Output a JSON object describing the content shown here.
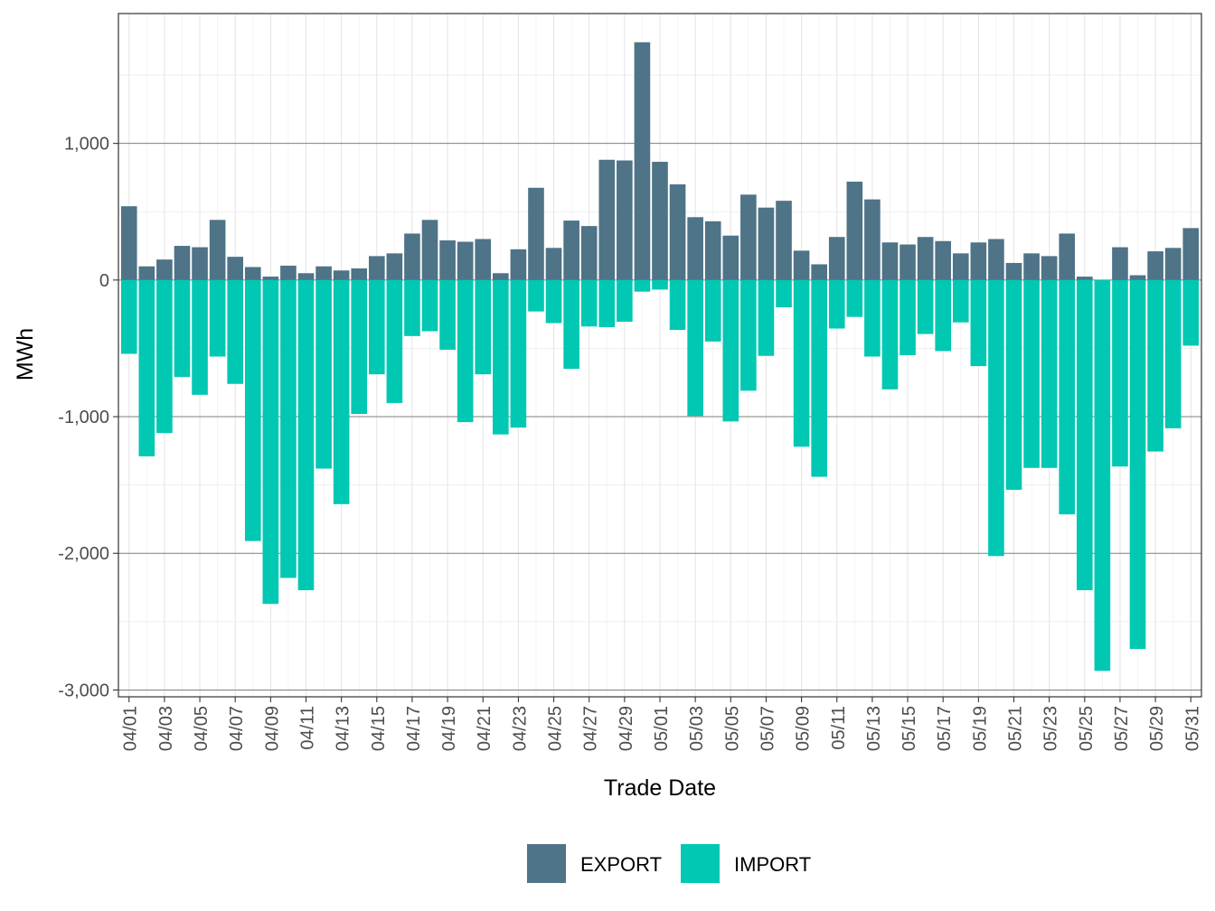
{
  "chart_data": {
    "type": "bar",
    "stacking": "diverging",
    "xlabel": "Trade Date",
    "ylabel": "MWh",
    "ylim": [
      -3050,
      1950
    ],
    "yticks": [
      -3000,
      -2000,
      -1000,
      0,
      1000
    ],
    "ytick_labels": [
      "-3,000",
      "-2,000",
      "-1,000",
      "0",
      "1,000"
    ],
    "grid": true,
    "legend_position": "bottom",
    "categories": [
      "04/01",
      "04/02",
      "04/03",
      "04/04",
      "04/05",
      "04/06",
      "04/07",
      "04/08",
      "04/09",
      "04/10",
      "04/11",
      "04/12",
      "04/13",
      "04/14",
      "04/15",
      "04/16",
      "04/17",
      "04/18",
      "04/19",
      "04/20",
      "04/21",
      "04/22",
      "04/23",
      "04/24",
      "04/25",
      "04/26",
      "04/27",
      "04/28",
      "04/29",
      "04/30",
      "05/01",
      "05/02",
      "05/03",
      "05/04",
      "05/05",
      "05/06",
      "05/07",
      "05/08",
      "05/09",
      "05/10",
      "05/11",
      "05/12",
      "05/13",
      "05/14",
      "05/15",
      "05/16",
      "05/17",
      "05/18",
      "05/19",
      "05/20",
      "05/21",
      "05/22",
      "05/23",
      "05/24",
      "05/25",
      "05/26",
      "05/27",
      "05/28",
      "05/29",
      "05/30",
      "05/31"
    ],
    "xtick_labels": [
      "04/01",
      "04/03",
      "04/05",
      "04/07",
      "04/09",
      "04/11",
      "04/13",
      "04/15",
      "04/17",
      "04/19",
      "04/21",
      "04/23",
      "04/25",
      "04/27",
      "04/29",
      "05/01",
      "05/03",
      "05/05",
      "05/07",
      "05/09",
      "05/11",
      "05/13",
      "05/15",
      "05/17",
      "05/19",
      "05/21",
      "05/23",
      "05/25",
      "05/27",
      "05/29",
      "05/31"
    ],
    "series": [
      {
        "name": "EXPORT",
        "color": "#4f7387",
        "values": [
          540,
          100,
          150,
          250,
          240,
          440,
          170,
          95,
          25,
          105,
          50,
          100,
          70,
          85,
          175,
          195,
          340,
          440,
          290,
          280,
          300,
          50,
          225,
          675,
          235,
          435,
          395,
          880,
          875,
          1740,
          865,
          700,
          460,
          430,
          325,
          625,
          530,
          580,
          215,
          115,
          315,
          720,
          590,
          275,
          260,
          315,
          285,
          195,
          275,
          300,
          125,
          195,
          175,
          340,
          25,
          0,
          240,
          35,
          210,
          235,
          380
        ]
      },
      {
        "name": "IMPORT",
        "color": "#00c8b2",
        "values": [
          -540,
          -1290,
          -1120,
          -710,
          -840,
          -560,
          -760,
          -1910,
          -2370,
          -2180,
          -2270,
          -1380,
          -1640,
          -980,
          -690,
          -900,
          -410,
          -375,
          -510,
          -1040,
          -690,
          -1130,
          -1080,
          -230,
          -315,
          -650,
          -340,
          -345,
          -305,
          -85,
          -70,
          -365,
          -995,
          -450,
          -1035,
          -810,
          -555,
          -200,
          -1220,
          -1440,
          -355,
          -270,
          -560,
          -800,
          -550,
          -395,
          -520,
          -310,
          -630,
          -2020,
          -1535,
          -1375,
          -1375,
          -1715,
          -2270,
          -2860,
          -1365,
          -2700,
          -1255,
          -1085,
          -480
        ]
      }
    ]
  }
}
